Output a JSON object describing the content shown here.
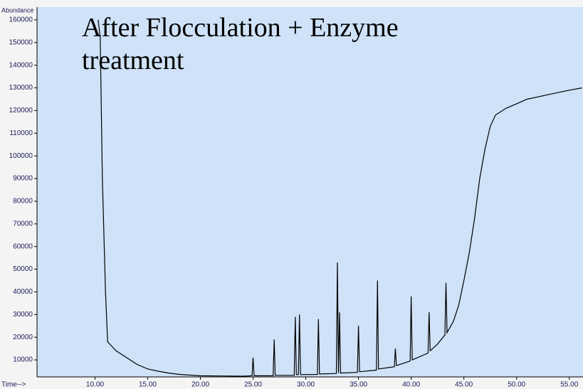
{
  "chart_data": {
    "type": "line",
    "title": "After Flocculation + Enzyme treatment",
    "y_label": "Abundance",
    "x_label": "Time-->",
    "color": "#000000",
    "background": "#cfe2f8",
    "x": [
      10.3,
      10.5,
      10.7,
      11.0,
      11.2,
      11.6,
      12,
      13,
      14,
      15,
      16,
      17,
      18,
      20,
      22,
      24,
      24.9,
      25.0,
      25.1,
      26.9,
      27.0,
      27.1,
      28.9,
      29.0,
      29.1,
      29.3,
      29.4,
      29.5,
      31.1,
      31.2,
      31.3,
      32.9,
      33.0,
      33.1,
      33.2,
      33.3,
      34.9,
      35.0,
      35.1,
      36.7,
      36.8,
      36.9,
      38.4,
      38.5,
      38.6,
      39.9,
      40.0,
      40.1,
      41.6,
      41.7,
      41.8,
      42.5,
      43.2,
      43.3,
      43.4,
      44,
      44.5,
      45,
      45.5,
      46,
      46.5,
      47,
      47.5,
      48,
      49,
      50,
      51,
      52,
      53,
      54,
      55,
      56.2
    ],
    "values": [
      160000,
      152000,
      90000,
      40000,
      18000,
      16000,
      14000,
      11000,
      8000,
      6000,
      5000,
      4200,
      3600,
      3000,
      2900,
      2800,
      3000,
      11000,
      3000,
      3000,
      19000,
      3200,
      3200,
      29000,
      3500,
      3500,
      30000,
      3500,
      3600,
      28000,
      3800,
      4000,
      53000,
      4200,
      31000,
      4200,
      4500,
      25000,
      4800,
      5500,
      45000,
      6000,
      7000,
      15000,
      7500,
      9500,
      38000,
      10000,
      13000,
      31000,
      14000,
      17000,
      21000,
      44000,
      22000,
      27000,
      34000,
      45000,
      57000,
      72000,
      90000,
      103000,
      113000,
      118000,
      121000,
      123000,
      125000,
      126000,
      127000,
      128000,
      129000,
      130000
    ],
    "xlim": [
      4.5,
      56.3
    ],
    "ylim": [
      2500,
      165000
    ],
    "xticks": [
      {
        "value": 10,
        "label": "10.00"
      },
      {
        "value": 15,
        "label": "15.00"
      },
      {
        "value": 20,
        "label": "20.00"
      },
      {
        "value": 25,
        "label": "25.00"
      },
      {
        "value": 30,
        "label": "30.00"
      },
      {
        "value": 35,
        "label": "35.00"
      },
      {
        "value": 40,
        "label": "40.00"
      },
      {
        "value": 45,
        "label": "45.00"
      },
      {
        "value": 50,
        "label": "50.00"
      },
      {
        "value": 55,
        "label": "55.00"
      }
    ],
    "yticks": [
      10000,
      20000,
      30000,
      40000,
      50000,
      60000,
      70000,
      80000,
      90000,
      100000,
      110000,
      120000,
      130000,
      140000,
      150000,
      160000
    ]
  }
}
